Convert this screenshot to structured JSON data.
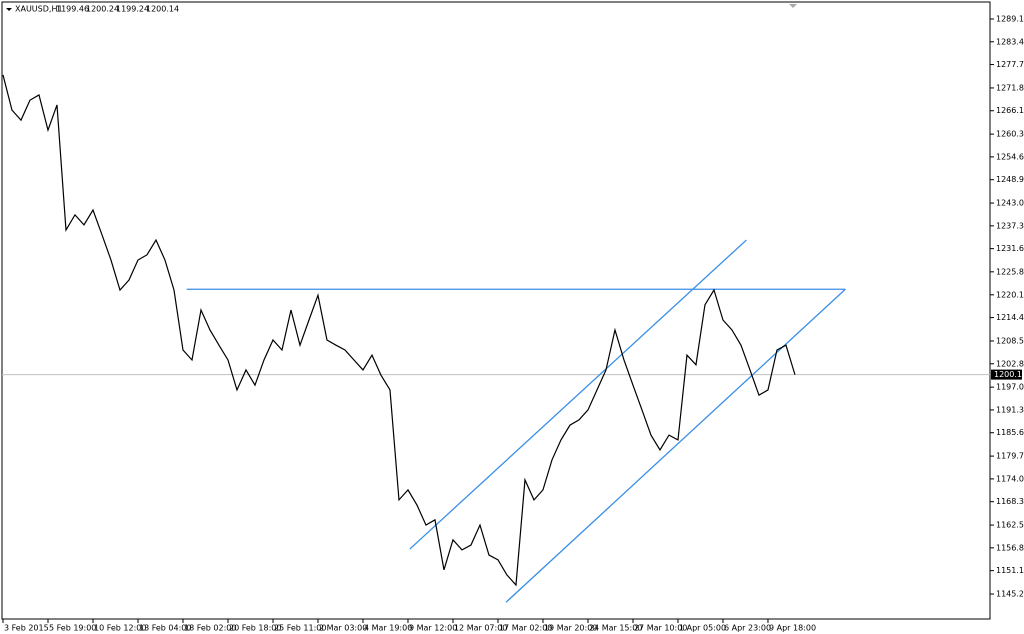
{
  "chart_data": {
    "type": "line",
    "symbol": "XAUUSD,H1",
    "ohlc": [
      1199.46,
      1200.24,
      1199.24,
      1200.14
    ],
    "categories": [
      "3 Feb 2015",
      null,
      null,
      null,
      null,
      "5 Feb 19:00",
      null,
      null,
      null,
      null,
      "10 Feb 12:00",
      null,
      null,
      null,
      null,
      "13 Feb 04:00",
      null,
      null,
      null,
      null,
      "18 Feb 02:00",
      null,
      null,
      null,
      null,
      "20 Feb 18:00",
      null,
      null,
      null,
      null,
      "25 Feb 11:00",
      null,
      null,
      null,
      null,
      "2 Mar 03:00",
      null,
      null,
      null,
      null,
      "4 Mar 19:00",
      null,
      null,
      null,
      null,
      "9 Mar 12:00",
      null,
      null,
      null,
      null,
      "12 Mar 07:00",
      null,
      null,
      null,
      null,
      "17 Mar 02:00",
      null,
      null,
      null,
      null,
      "19 Mar 20:00",
      null,
      null,
      null,
      null,
      "24 Mar 15:00",
      null,
      null,
      null,
      null,
      "27 Mar 10:00",
      null,
      null,
      null,
      null,
      "1 Apr 05:00",
      null,
      null,
      null,
      null,
      "6 Apr 23:00",
      null,
      null,
      null,
      null,
      "9 Apr 18:00",
      null,
      null,
      null
    ],
    "series": [
      {
        "name": "XAUUSD,H1",
        "color": "#000000",
        "values": [
          1275.1,
          1266.3,
          1263.8,
          1268.8,
          1270.1,
          1261.3,
          1267.6,
          1236.3,
          1240.1,
          1237.6,
          1241.3,
          1235.1,
          1228.8,
          1221.3,
          1223.8,
          1228.8,
          1230.1,
          1233.8,
          1228.8,
          1221.3,
          1206.3,
          1203.8,
          1216.3,
          1211.3,
          1207.5,
          1203.8,
          1196.3,
          1201.3,
          1197.5,
          1203.8,
          1208.8,
          1206.3,
          1216.3,
          1207.5,
          1213.8,
          1220.0,
          1208.8,
          1207.5,
          1206.3,
          1203.8,
          1201.3,
          1205.0,
          1200.0,
          1196.3,
          1168.8,
          1171.3,
          1167.5,
          1162.5,
          1163.8,
          1151.3,
          1158.8,
          1156.3,
          1157.5,
          1162.5,
          1155.0,
          1153.8,
          1150.0,
          1147.5,
          1173.8,
          1168.8,
          1171.3,
          1178.8,
          1183.8,
          1187.5,
          1188.8,
          1191.3,
          1196.3,
          1201.3,
          1211.3,
          1203.8,
          1197.5,
          1191.3,
          1185.0,
          1181.3,
          1185.0,
          1183.8,
          1205.0,
          1202.6,
          1217.6,
          1221.3,
          1213.8,
          1211.3,
          1207.5,
          1201.3,
          1195.0,
          1196.3,
          1206.3,
          1207.5,
          1200.1
        ]
      }
    ],
    "last_price": 1200.14,
    "trendline_color": "#3a8ee6",
    "trendlines": [
      {
        "x": [
          20.4,
          93.6
        ],
        "y": [
          1221.5,
          1221.5
        ]
      },
      {
        "x": [
          45.2,
          82.6
        ],
        "y": [
          1156.5,
          1233.8
        ]
      },
      {
        "x": [
          55.9,
          93.6
        ],
        "y": [
          1143.2,
          1221.5
        ]
      }
    ],
    "xlim": [
      -0.11,
      109.67
    ],
    "ylim": [
      1139.0,
      1293.35
    ],
    "yticks": [
      {
        "value": 1289.1,
        "label": "1289.10"
      },
      {
        "value": 1283.4,
        "label": "1283.40"
      },
      {
        "value": 1277.7,
        "label": "1277.70"
      },
      1271.85,
      1266.15,
      {
        "value": 1260.3,
        "label": "1260.30"
      },
      {
        "value": 1254.6,
        "label": "1254.60"
      },
      {
        "value": 1248.9,
        "label": "1248.90"
      },
      1243.05,
      1237.35,
      1231.65,
      1225.85,
      {
        "value": 1220.1,
        "label": "1220.10"
      },
      {
        "value": 1214.4,
        "label": "1214.40"
      },
      1208.55,
      1202.85,
      {
        "value": 1197,
        "label": "1197.00"
      },
      {
        "value": 1191.3,
        "label": "1191.30"
      },
      {
        "value": 1185.6,
        "label": "1185.60"
      },
      1179.75,
      1174.05,
      1168.35,
      {
        "value": 1162.5,
        "label": "1162.50"
      },
      {
        "value": 1156.8,
        "label": "1156.80"
      },
      {
        "value": 1151.1,
        "label": "1151.10"
      },
      1145.25
    ]
  }
}
